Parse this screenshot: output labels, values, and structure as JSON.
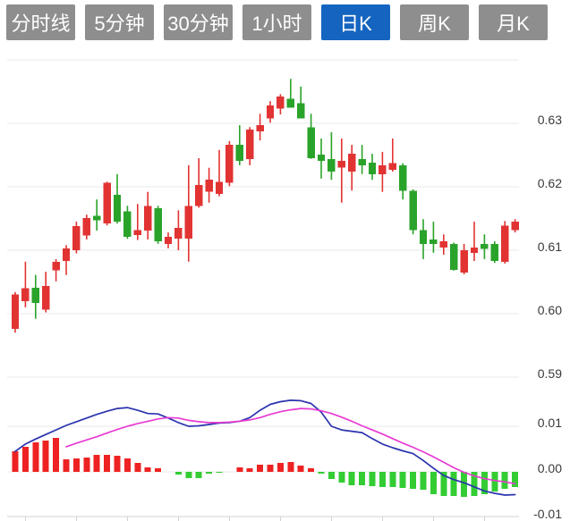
{
  "tabbar": {
    "tabs": [
      {
        "label": "分时线"
      },
      {
        "label": "5分钟"
      },
      {
        "label": "30分钟"
      },
      {
        "label": "1小时"
      },
      {
        "label": "日K"
      },
      {
        "label": "周K"
      },
      {
        "label": "月K"
      }
    ],
    "active_index": 4,
    "active_color": "#1565c0",
    "inactive_color": "#8e8e8e",
    "text_color": "#ffffff"
  },
  "chart_data": {
    "type": "candlestick+macd",
    "title": "",
    "legend_position": "none",
    "grid": true,
    "price_axis": {
      "side": "right",
      "tick_labels": [
        0.63,
        0.62,
        0.61,
        0.6,
        0.59
      ],
      "gridline_values": [
        0.64,
        0.63,
        0.62,
        0.61,
        0.6,
        0.59
      ],
      "range_shown": [
        0.585,
        0.6395
      ]
    },
    "macd_axis": {
      "side": "right",
      "tick_labels": [
        0.01,
        0.0,
        -0.01
      ],
      "gridline_values": [
        0.01,
        0.0
      ],
      "baseline_value": -0.01
    },
    "candles_ohlc_note": "arrays are [open, high, low, close]; close>=open renders red (up), close<open renders green (down)",
    "candles": [
      [
        0.5976,
        0.6034,
        0.597,
        0.603
      ],
      [
        0.602,
        0.6082,
        0.601,
        0.604
      ],
      [
        0.6041,
        0.6061,
        0.5992,
        0.6017
      ],
      [
        0.6006,
        0.6066,
        0.6002,
        0.6044
      ],
      [
        0.6068,
        0.6086,
        0.6051,
        0.6082
      ],
      [
        0.6083,
        0.6108,
        0.6061,
        0.6103
      ],
      [
        0.61,
        0.6145,
        0.6095,
        0.6138
      ],
      [
        0.6123,
        0.6156,
        0.6117,
        0.6151
      ],
      [
        0.6154,
        0.618,
        0.6131,
        0.6147
      ],
      [
        0.6142,
        0.6208,
        0.6139,
        0.6206
      ],
      [
        0.6187,
        0.622,
        0.6142,
        0.6145
      ],
      [
        0.6161,
        0.617,
        0.6118,
        0.6121
      ],
      [
        0.6124,
        0.6173,
        0.6116,
        0.6132
      ],
      [
        0.6131,
        0.6192,
        0.6117,
        0.617
      ],
      [
        0.6166,
        0.617,
        0.611,
        0.6114
      ],
      [
        0.611,
        0.6128,
        0.6103,
        0.6121
      ],
      [
        0.6118,
        0.6163,
        0.61,
        0.6135
      ],
      [
        0.6118,
        0.6234,
        0.6082,
        0.617
      ],
      [
        0.617,
        0.6245,
        0.6167,
        0.6203
      ],
      [
        0.6192,
        0.623,
        0.6175,
        0.6211
      ],
      [
        0.6189,
        0.6258,
        0.6185,
        0.6208
      ],
      [
        0.6206,
        0.6272,
        0.6201,
        0.6266
      ],
      [
        0.6266,
        0.6297,
        0.6234,
        0.6241
      ],
      [
        0.6244,
        0.6294,
        0.6234,
        0.629
      ],
      [
        0.6287,
        0.6315,
        0.6273,
        0.6297
      ],
      [
        0.6308,
        0.6335,
        0.6301,
        0.6328
      ],
      [
        0.6323,
        0.6346,
        0.6314,
        0.6342
      ],
      [
        0.6339,
        0.637,
        0.6325,
        0.6325
      ],
      [
        0.6332,
        0.6358,
        0.6308,
        0.6308
      ],
      [
        0.6294,
        0.6315,
        0.6244,
        0.6245
      ],
      [
        0.6251,
        0.6276,
        0.6213,
        0.6241
      ],
      [
        0.6244,
        0.6286,
        0.6211,
        0.6224
      ],
      [
        0.623,
        0.6276,
        0.6175,
        0.6241
      ],
      [
        0.6224,
        0.6266,
        0.6194,
        0.6252
      ],
      [
        0.6244,
        0.6266,
        0.622,
        0.6234
      ],
      [
        0.6238,
        0.6252,
        0.6211,
        0.622
      ],
      [
        0.622,
        0.6255,
        0.6192,
        0.6234
      ],
      [
        0.6227,
        0.6276,
        0.6224,
        0.6237
      ],
      [
        0.6234,
        0.6237,
        0.618,
        0.6194
      ],
      [
        0.6194,
        0.6196,
        0.6125,
        0.6132
      ],
      [
        0.6132,
        0.6149,
        0.6086,
        0.611
      ],
      [
        0.6117,
        0.6145,
        0.6096,
        0.611
      ],
      [
        0.6104,
        0.6125,
        0.6093,
        0.6114
      ],
      [
        0.611,
        0.6112,
        0.6068,
        0.6069
      ],
      [
        0.6065,
        0.611,
        0.6062,
        0.61
      ],
      [
        0.6096,
        0.6145,
        0.6083,
        0.6104
      ],
      [
        0.611,
        0.6125,
        0.6086,
        0.6102
      ],
      [
        0.611,
        0.6114,
        0.608,
        0.6083
      ],
      [
        0.6082,
        0.6146,
        0.6079,
        0.6139
      ],
      [
        0.6132,
        0.6149,
        0.6128,
        0.6145
      ]
    ],
    "macd": {
      "histogram": [
        0.0045,
        0.0055,
        0.0065,
        0.0069,
        0.0075,
        0.0027,
        0.0029,
        0.0031,
        0.0037,
        0.0037,
        0.0035,
        0.0029,
        0.002,
        0.001,
        0.0008,
        0.0,
        -0.0006,
        -0.0014,
        -0.0014,
        -0.0004,
        -0.0002,
        0.0,
        0.001,
        0.0008,
        0.0016,
        0.0016,
        0.002,
        0.0022,
        0.0014,
        0.0008,
        -0.0004,
        -0.0016,
        -0.0024,
        -0.0029,
        -0.0029,
        -0.0031,
        -0.0033,
        -0.0033,
        -0.0035,
        -0.0037,
        -0.0039,
        -0.0049,
        -0.0053,
        -0.0053,
        -0.0055,
        -0.0053,
        -0.0049,
        -0.0043,
        -0.0037,
        -0.0033
      ],
      "dif": [
        0.0045,
        0.0061,
        0.0072,
        0.0082,
        0.0092,
        0.0102,
        0.011,
        0.0118,
        0.0126,
        0.0133,
        0.0139,
        0.0141,
        0.0135,
        0.0128,
        0.0127,
        0.0118,
        0.0108,
        0.01,
        0.0101,
        0.0104,
        0.0107,
        0.0108,
        0.0111,
        0.0119,
        0.0135,
        0.0148,
        0.0154,
        0.0157,
        0.0156,
        0.015,
        0.0131,
        0.01,
        0.0092,
        0.0089,
        0.0086,
        0.0073,
        0.0061,
        0.0053,
        0.0046,
        0.004,
        0.0025,
        0.0008,
        -0.0008,
        -0.0017,
        -0.0024,
        -0.0033,
        -0.0042,
        -0.0047,
        -0.0051,
        -0.005
      ],
      "dea_start_index": 5,
      "dea": [
        0.0055,
        0.0063,
        0.007,
        0.0077,
        0.0085,
        0.0093,
        0.01,
        0.0106,
        0.0111,
        0.0116,
        0.0119,
        0.0118,
        0.0113,
        0.011,
        0.0108,
        0.0108,
        0.0109,
        0.0111,
        0.0114,
        0.0119,
        0.0126,
        0.0132,
        0.0136,
        0.0139,
        0.0138,
        0.0134,
        0.0128,
        0.012,
        0.0111,
        0.0101,
        0.0092,
        0.0083,
        0.0073,
        0.0063,
        0.0054,
        0.0044,
        0.0033,
        0.0021,
        0.0009,
        -0.0001,
        -0.0009,
        -0.0015,
        -0.0019,
        -0.0022,
        -0.0026
      ]
    },
    "colors": {
      "candle_up": "#e23333",
      "candle_down": "#2aa32a",
      "hist_up": "#ee2222",
      "hist_down": "#33cc33",
      "dif_line": "#2b33ae",
      "dea_line": "#e83bd2",
      "gridline": "#e8e8e8",
      "axis_line": "#d0d0d6",
      "tick_label": "#3a3a3a"
    }
  }
}
